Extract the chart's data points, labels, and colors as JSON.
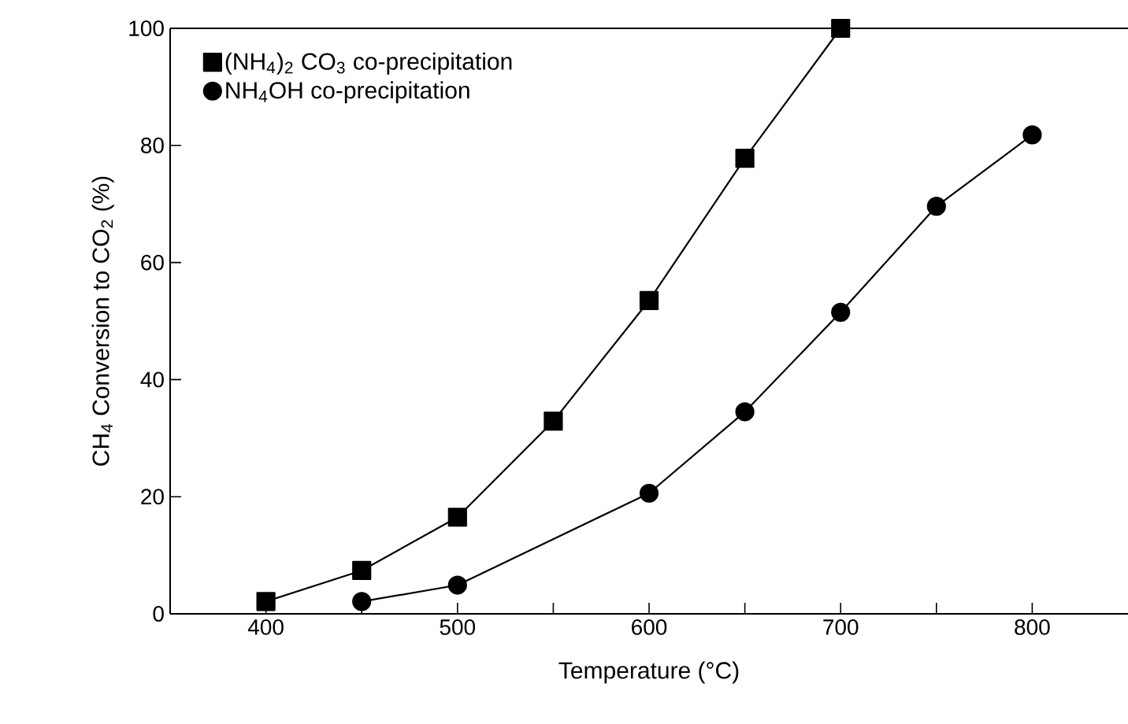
{
  "chart_data": {
    "type": "line",
    "xlabel": "Temperature (°C)",
    "ylabel": "CH$_{4}$ Conversion to CO$_{2}$ (%)",
    "xlim": [
      350,
      850
    ],
    "ylim": [
      0,
      100
    ],
    "xticks": [
      400,
      {
        "value": 450,
        "label": null
      },
      500,
      {
        "value": 550,
        "label": null
      },
      600,
      {
        "value": 650,
        "label": null
      },
      700,
      {
        "value": 750,
        "label": null
      },
      800
    ],
    "yticks": [
      0,
      20,
      40,
      60,
      80,
      100
    ],
    "legend": "top left",
    "grid": false,
    "series": [
      {
        "name": "(NH$_{4}$)$_{2}$ CO$_{3}$ co-precipitation",
        "color": "#000000",
        "marker": "square",
        "x": [
          400,
          450,
          500,
          550,
          600,
          650,
          700
        ],
        "values": [
          2.1,
          7.4,
          16.5,
          32.9,
          53.5,
          77.8,
          100
        ]
      },
      {
        "name": "NH$_{4}$OH co-precipitation",
        "color": "#000000",
        "marker": "circle",
        "x": [
          450,
          500,
          600,
          650,
          700,
          750,
          800
        ],
        "values": [
          2.1,
          4.9,
          20.6,
          34.5,
          51.5,
          69.6,
          81.8
        ]
      }
    ]
  }
}
